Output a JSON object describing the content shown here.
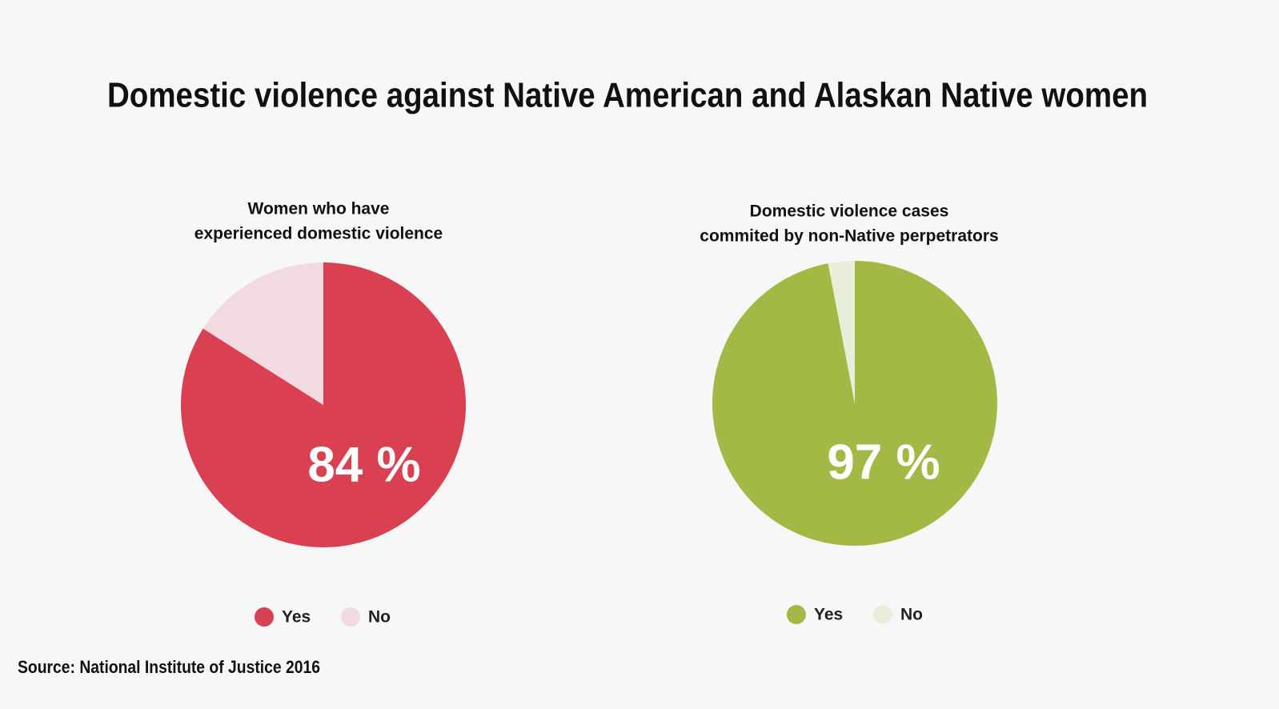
{
  "title": "Domestic violence against Native American and Alaskan Native women",
  "source": "Source: National Institute of Justice 2016",
  "chart_data": [
    {
      "type": "pie",
      "title": [
        "Women who have",
        "experienced domestic violence"
      ],
      "categories": [
        "Yes",
        "No"
      ],
      "values": [
        84,
        16
      ],
      "value_labels": [
        "84 %",
        null
      ],
      "colors": [
        "#d94052",
        "#f2dbe0"
      ]
    },
    {
      "type": "pie",
      "title": [
        "Domestic violence cases",
        "commited by non-Native perpetrators"
      ],
      "categories": [
        "Yes",
        "No"
      ],
      "values": [
        97,
        3
      ],
      "value_labels": [
        "97 %",
        null
      ],
      "colors": [
        "#a3b946",
        "#e9eedb"
      ]
    }
  ]
}
